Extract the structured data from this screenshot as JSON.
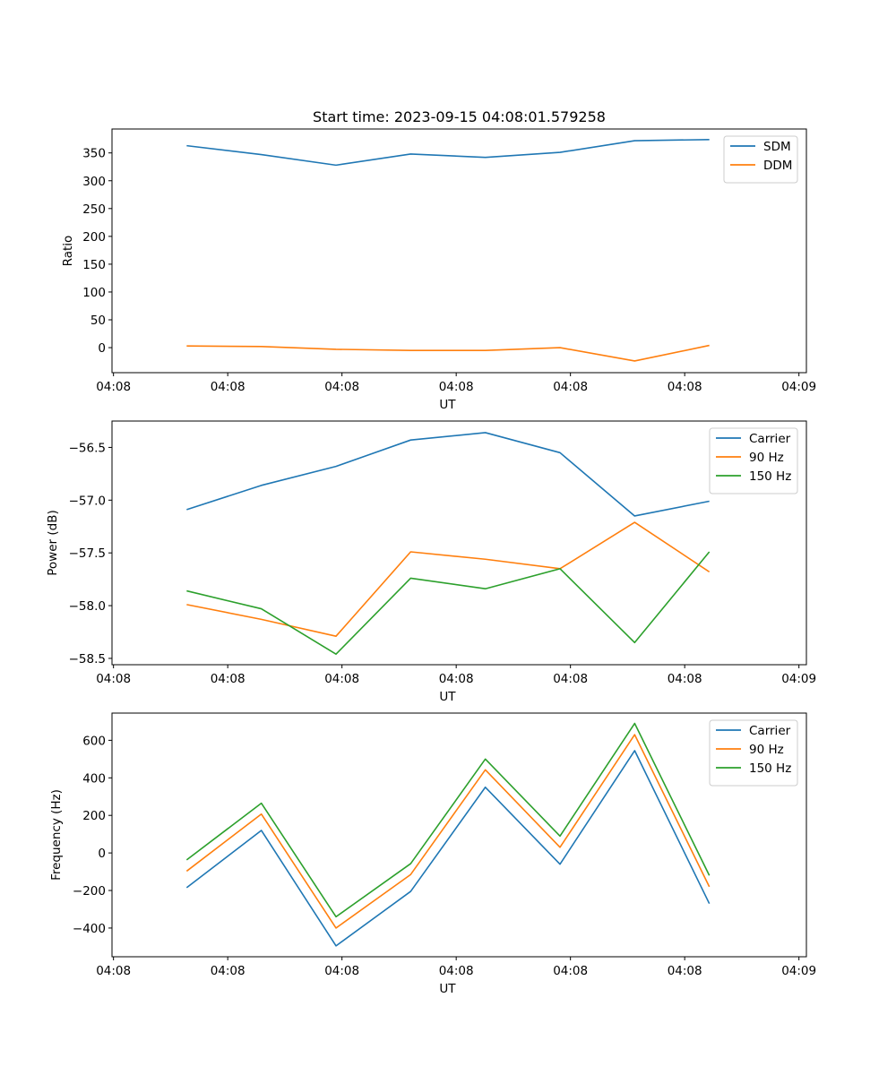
{
  "chart_data": [
    {
      "type": "line",
      "title": "Start time: 2023-09-15 04:08:01.579258",
      "xlabel": "UT",
      "ylabel": "Ratio",
      "x": [
        1,
        2,
        3,
        4,
        5,
        6,
        7,
        8
      ],
      "xlim": [
        0,
        9.3
      ],
      "x_ticks": [
        0.02,
        1.55,
        3.08,
        4.61,
        6.14,
        7.67,
        9.2
      ],
      "x_tick_labels": [
        "04:08",
        "04:08",
        "04:08",
        "04:08",
        "04:08",
        "04:08",
        "04:09"
      ],
      "ylim": [
        -45,
        393
      ],
      "y_ticks": [
        0,
        50,
        100,
        150,
        200,
        250,
        300,
        350
      ],
      "y_tick_labels": [
        "0",
        "50",
        "100",
        "150",
        "200",
        "250",
        "300",
        "350"
      ],
      "legend_position": "top-right",
      "series": [
        {
          "name": "SDM",
          "color": "#1f77b4",
          "values": [
            363,
            347,
            328,
            348,
            342,
            351,
            372,
            374
          ]
        },
        {
          "name": "DDM",
          "color": "#ff7f0e",
          "values": [
            3,
            2,
            -3,
            -5,
            -5,
            0,
            -24,
            4
          ]
        }
      ]
    },
    {
      "type": "line",
      "title": "",
      "xlabel": "UT",
      "ylabel": "Power (dB)",
      "x": [
        1,
        2,
        3,
        4,
        5,
        6,
        7,
        8
      ],
      "xlim": [
        0,
        9.3
      ],
      "x_ticks": [
        0.02,
        1.55,
        3.08,
        4.61,
        6.14,
        7.67,
        9.2
      ],
      "x_tick_labels": [
        "04:08",
        "04:08",
        "04:08",
        "04:08",
        "04:08",
        "04:08",
        "04:09"
      ],
      "ylim": [
        -58.56,
        -56.25
      ],
      "y_ticks": [
        -58.5,
        -58.0,
        -57.5,
        -57.0,
        -56.5
      ],
      "y_tick_labels": [
        "−58.5",
        "−58.0",
        "−57.5",
        "−57.0",
        "−56.5"
      ],
      "legend_position": "top-right",
      "series": [
        {
          "name": "Carrier",
          "color": "#1f77b4",
          "values": [
            -57.09,
            -56.86,
            -56.68,
            -56.43,
            -56.36,
            -56.55,
            -57.15,
            -57.01
          ]
        },
        {
          "name": "90 Hz",
          "color": "#ff7f0e",
          "values": [
            -57.99,
            -58.13,
            -58.29,
            -57.49,
            -57.56,
            -57.65,
            -57.21,
            -57.68
          ]
        },
        {
          "name": "150 Hz",
          "color": "#2ca02c",
          "values": [
            -57.86,
            -58.03,
            -58.46,
            -57.74,
            -57.84,
            -57.65,
            -58.35,
            -57.49
          ]
        }
      ]
    },
    {
      "type": "line",
      "title": "",
      "xlabel": "UT",
      "ylabel": "Frequency (Hz)",
      "x": [
        1,
        2,
        3,
        4,
        5,
        6,
        7,
        8
      ],
      "xlim": [
        0,
        9.3
      ],
      "x_ticks": [
        0.02,
        1.55,
        3.08,
        4.61,
        6.14,
        7.67,
        9.2
      ],
      "x_tick_labels": [
        "04:08",
        "04:08",
        "04:08",
        "04:08",
        "04:08",
        "04:08",
        "04:09"
      ],
      "ylim": [
        -553,
        745
      ],
      "y_ticks": [
        -400,
        -200,
        0,
        200,
        400,
        600
      ],
      "y_tick_labels": [
        "−400",
        "−200",
        "0",
        "200",
        "400",
        "600"
      ],
      "legend_position": "top-right",
      "series": [
        {
          "name": "Carrier",
          "color": "#1f77b4",
          "values": [
            -185,
            120,
            -495,
            -205,
            350,
            -60,
            545,
            -270
          ]
        },
        {
          "name": "90 Hz",
          "color": "#ff7f0e",
          "values": [
            -97,
            207,
            -400,
            -115,
            443,
            30,
            630,
            -180
          ]
        },
        {
          "name": "150 Hz",
          "color": "#2ca02c",
          "values": [
            -37,
            265,
            -340,
            -57,
            500,
            90,
            690,
            -120
          ]
        }
      ]
    }
  ]
}
